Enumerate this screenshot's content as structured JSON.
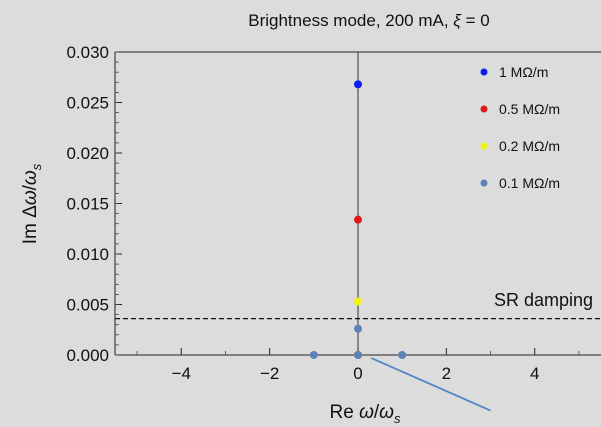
{
  "chart_data": {
    "type": "scatter",
    "title": "Brightness mode, 200 mA, ξ = 0",
    "title_plain": "Brightness mode, 200 mA, ",
    "title_symbol": "ξ",
    "title_tail": " = 0",
    "xlabel_prefix": "Re ",
    "xlabel_symbol": "ω",
    "xlabel_sep": "/",
    "xlabel_denom": "ω",
    "xlabel_sub": "s",
    "ylabel_prefix": "Im Δ",
    "ylabel_symbol": "ω",
    "ylabel_sep": "/",
    "ylabel_denom": "ω",
    "ylabel_sub": "s",
    "xlim": [
      -5.5,
      5.5
    ],
    "ylim": [
      0.0,
      0.03
    ],
    "xticks": [
      "−4",
      "−2",
      "0",
      "2",
      "4"
    ],
    "xtick_values": [
      -4,
      -2,
      0,
      2,
      4
    ],
    "yticks": [
      "0.000",
      "0.005",
      "0.010",
      "0.015",
      "0.020",
      "0.025",
      "0.030"
    ],
    "ytick_values": [
      0.0,
      0.005,
      0.01,
      0.015,
      0.02,
      0.025,
      0.03
    ],
    "legend_position": "top-right",
    "series": [
      {
        "name": "1 MΩ/m",
        "color": "#0a1ef0",
        "points": [
          [
            0,
            0.0268
          ],
          [
            0,
            0.0
          ]
        ]
      },
      {
        "name": "0.5 MΩ/m",
        "color": "#e01818",
        "points": [
          [
            0,
            0.0134
          ],
          [
            0,
            0.0
          ]
        ]
      },
      {
        "name": "0.2 MΩ/m",
        "color": "#f2f20a",
        "points": [
          [
            0,
            0.0053
          ],
          [
            0,
            0.0
          ]
        ]
      },
      {
        "name": "0.1 MΩ/m",
        "color": "#5c82b8",
        "points": [
          [
            0,
            0.0026
          ],
          [
            0,
            0.0
          ],
          [
            -1,
            0.0
          ],
          [
            1,
            0.0
          ]
        ]
      }
    ],
    "reference_line": {
      "label": "SR damping",
      "y": 0.0036,
      "style": "dashed"
    },
    "extra_line": {
      "color": "#4f86c6",
      "points": [
        [
          0.3,
          -0.0003
        ],
        [
          3.0,
          -0.0055
        ]
      ]
    }
  }
}
